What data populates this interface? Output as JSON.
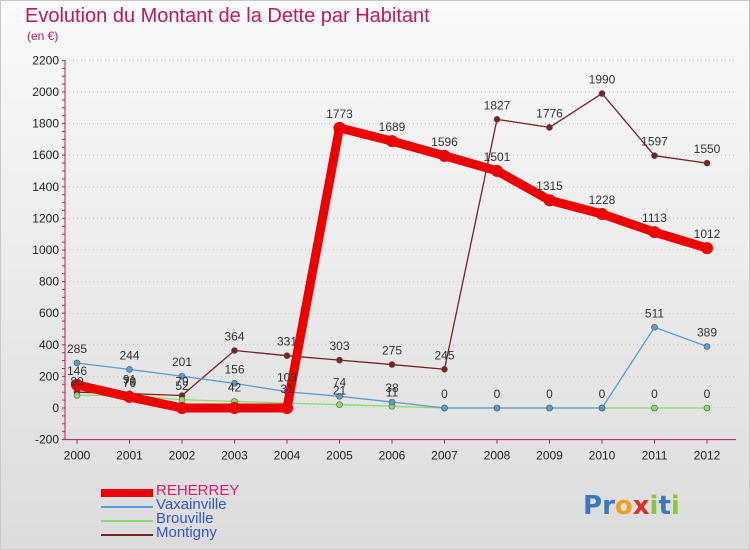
{
  "title": "Evolution du Montant de la Dette par Habitant",
  "subtitle": "(en €)",
  "logo": {
    "text": "Proxiti",
    "letters": [
      {
        "ch": "P",
        "color": "#3a78c2"
      },
      {
        "ch": "r",
        "color": "#3a78c2"
      },
      {
        "ch": "o",
        "color": "#f0a020"
      },
      {
        "ch": "x",
        "color": "#d9302a"
      },
      {
        "ch": "i",
        "color": "#8cc63e"
      },
      {
        "ch": "t",
        "color": "#3a78c2"
      },
      {
        "ch": "i",
        "color": "#8cc63e"
      }
    ]
  },
  "chart_data": {
    "type": "line",
    "x": [
      "2000",
      "2001",
      "2002",
      "2003",
      "2004",
      "2005",
      "2006",
      "2007",
      "2008",
      "2009",
      "2010",
      "2011",
      "2012"
    ],
    "ylim": [
      -200,
      2200
    ],
    "yticks": [
      -200,
      0,
      200,
      400,
      600,
      800,
      1000,
      1200,
      1400,
      1600,
      1800,
      2000,
      2200
    ],
    "grid": true,
    "legend_position": "bottom-left",
    "series": [
      {
        "name": "REHERREY",
        "color": "#ee0000",
        "legend_color": "#e0186c",
        "values": [
          146,
          70,
          0,
          0,
          0,
          1773,
          1689,
          1596,
          1501,
          1315,
          1228,
          1113,
          1012
        ],
        "labels": [
          "146",
          "70",
          "",
          "",
          "",
          "1773",
          "1689",
          "1596",
          "1501",
          "1315",
          "1228",
          "1113",
          "1012"
        ]
      },
      {
        "name": "Vaxainville",
        "color": "#5b9bd5",
        "legend_color": "#3355cc",
        "values": [
          285,
          244,
          201,
          156,
          103,
          74,
          38,
          0,
          0,
          0,
          0,
          511,
          389
        ],
        "labels": [
          "285",
          "244",
          "201",
          "156",
          "103",
          "74",
          "38",
          "0",
          "0",
          "0",
          "0",
          "511",
          "389"
        ]
      },
      {
        "name": "Brouville",
        "color": "#88dd66",
        "legend_color": "#3355cc",
        "values": [
          80,
          79,
          52,
          42,
          31,
          21,
          11,
          0,
          0,
          0,
          0,
          0,
          0
        ],
        "labels": [
          "80",
          "79",
          "52",
          "42",
          "31",
          "21",
          "11",
          "",
          "",
          "",
          "",
          "0",
          "0"
        ]
      },
      {
        "name": "Montigny",
        "color": "#7a2222",
        "legend_color": "#3355cc",
        "values": [
          100,
          91,
          79,
          364,
          331,
          303,
          275,
          245,
          1827,
          1776,
          1990,
          1597,
          1550
        ],
        "labels": [
          "",
          "91",
          "79",
          "364",
          "331",
          "303",
          "275",
          "245",
          "1827",
          "1776",
          "1990",
          "1597",
          "1550"
        ]
      }
    ]
  }
}
